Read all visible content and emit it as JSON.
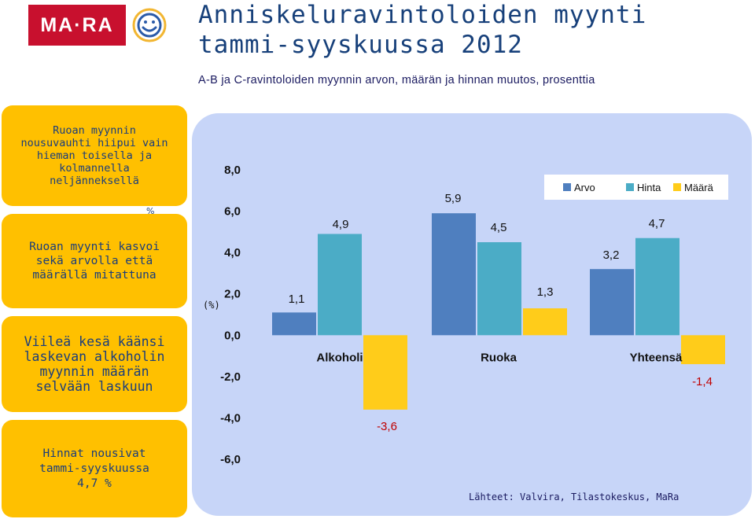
{
  "header": {
    "logo_text": "MA·RA",
    "title_line1": "Anniskeluravintoloiden myynti",
    "title_line2": "tammi-syyskuussa 2012",
    "subtitle": "A-B ja C-ravintoloiden myynnin arvon, määrän ja hinnan muutos, prosenttia"
  },
  "boxes": [
    {
      "lines": [
        "Ruoan myynnin",
        "nousuvauhti hiipui vain",
        "hieman toisella ja",
        "kolmannella",
        "neljänneksellä"
      ]
    },
    {
      "lines": [
        "Ruoan myynti kasvoi",
        "sekä arvolla että",
        "määrällä mitattuna"
      ]
    },
    {
      "lines": [
        "Viileä kesä käänsi",
        "laskevan alkoholin",
        "myynnin määrän",
        "selvään laskuun"
      ]
    },
    {
      "lines": [
        "Hinnat nousivat",
        "tammi-syyskuussa",
        "4,7 %"
      ]
    }
  ],
  "stray_mark": "%",
  "source": "Lähteet: Valvira, Tilastokeskus, MaRa",
  "colors": {
    "brand_red": "#c8102e",
    "box_yellow": "#ffc000",
    "panel_blue": "#c7d5f8",
    "arvo": "#4f7fbf",
    "hinta": "#4bacc6",
    "maara": "#ffcc1a",
    "negative_label": "#c00000"
  },
  "chart_data": {
    "type": "bar",
    "ylabel": "(%)",
    "ylim": [
      -6,
      8
    ],
    "yticks": [
      "8,0",
      "6,0",
      "4,0",
      "2,0",
      "0,0",
      "-2,0",
      "-4,0",
      "-6,0"
    ],
    "ytick_values": [
      8,
      6,
      4,
      2,
      0,
      -2,
      -4,
      -6
    ],
    "categories": [
      "Alkoholi",
      "Ruoka",
      "Yhteensä"
    ],
    "series": [
      {
        "name": "Arvo",
        "values": [
          1.1,
          5.9,
          3.2
        ],
        "labels": [
          "1,1",
          "5,9",
          "3,2"
        ]
      },
      {
        "name": "Hinta",
        "values": [
          4.9,
          4.5,
          4.7
        ],
        "labels": [
          "4,9",
          "4,5",
          "4,7"
        ]
      },
      {
        "name": "Määrä",
        "values": [
          -3.6,
          1.3,
          -1.4
        ],
        "labels": [
          "-3,6",
          "1,3",
          "-1,4"
        ]
      }
    ],
    "legend": "top-right",
    "grid": false
  }
}
